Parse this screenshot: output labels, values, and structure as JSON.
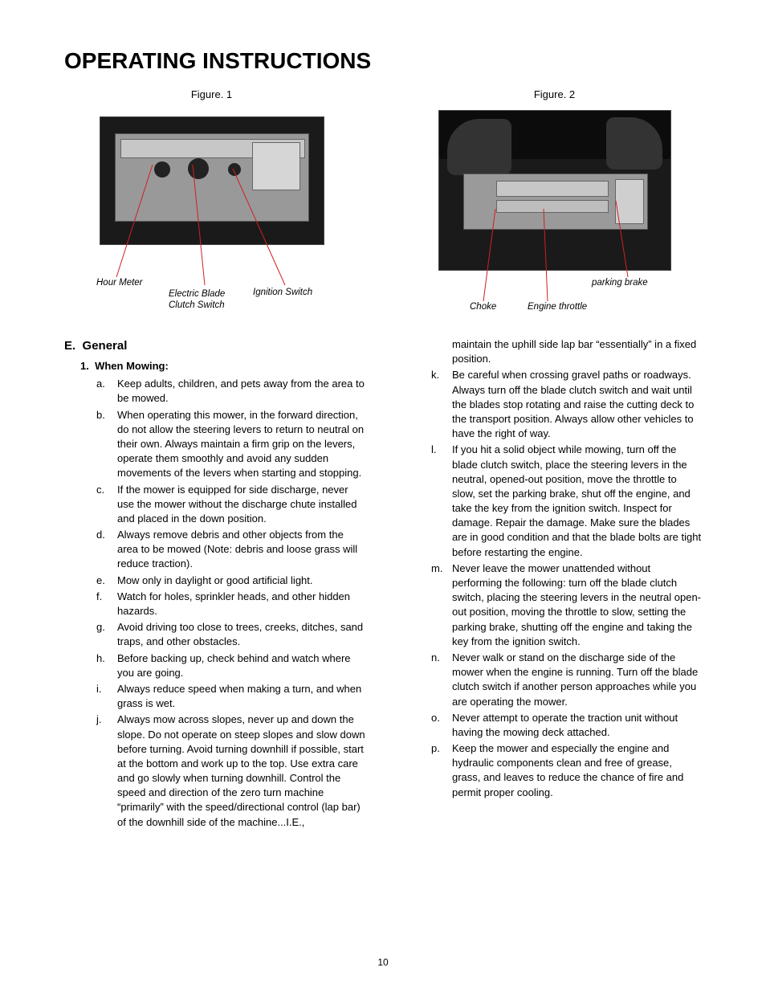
{
  "title": "OPERATING INSTRUCTIONS",
  "figure1": {
    "caption": "Figure. 1",
    "callouts": {
      "hour_meter": "Hour Meter",
      "electric_blade_clutch": "Electric Blade\nClutch Switch",
      "ignition_switch": "Ignition Switch"
    },
    "line_color": "#d02020"
  },
  "figure2": {
    "caption": "Figure. 2",
    "callouts": {
      "choke": "Choke",
      "engine_throttle": "Engine throttle",
      "parking_brake": "parking brake"
    },
    "line_color": "#d02020"
  },
  "section": {
    "letter": "E.",
    "title": "General",
    "sub_number": "1.",
    "sub_title": "When Mowing:"
  },
  "items_left": [
    {
      "m": "a.",
      "t": "Keep adults, children, and pets away from the area to be mowed."
    },
    {
      "m": "b.",
      "t": "When operating this mower, in the forward direction, do not allow the steering levers to return to neutral on their own. Always maintain a firm grip on the levers, operate them smoothly and avoid any sudden movements of the levers when starting and stopping."
    },
    {
      "m": "c.",
      "t": "If the mower is equipped for side discharge, never use the mower without the discharge chute installed and placed in the down position."
    },
    {
      "m": "d.",
      "t": "Always remove debris and other objects from the area to be mowed (Note: debris and loose grass will reduce traction)."
    },
    {
      "m": "e.",
      "t": "Mow only in daylight or good artificial light."
    },
    {
      "m": "f.",
      "t": "Watch for holes, sprinkler heads, and other hidden hazards."
    },
    {
      "m": "g.",
      "t": "Avoid driving too close to trees, creeks, ditches, sand traps, and other obstacles."
    },
    {
      "m": "h.",
      "t": "Before backing up, check behind and watch where you are going."
    },
    {
      "m": "i.",
      "t": "Always reduce speed when making a turn, and when grass is wet."
    },
    {
      "m": "j.",
      "t": "Always mow across slopes, never up and down the slope. Do not operate on steep slopes and slow down before turning. Avoid turning downhill if possible, start at the bottom and work up to the top. Use extra care and go slowly when turning downhill. Control the speed and direction of the zero turn machine “primarily” with the speed/directional control (lap bar) of the downhill side of the machine...I.E.,"
    }
  ],
  "right_lead": "maintain the uphill side lap bar “essentially” in a fixed position.",
  "items_right": [
    {
      "m": "k.",
      "t": "Be careful when crossing gravel paths or roadways. Always turn off the blade clutch switch and wait until the blades stop rotating and raise the cutting deck to the transport position. Always allow other vehicles to have the right of way."
    },
    {
      "m": "l.",
      "t": "If you hit a solid object while mowing, turn off the blade clutch switch, place the steering levers in the neutral, opened-out position, move the throttle to slow, set the parking brake, shut off the engine, and take the key from the ignition switch. Inspect for damage. Repair the damage. Make sure the blades are in good condition and that the blade bolts are tight before restarting the engine."
    },
    {
      "m": "m.",
      "t": "Never leave the mower unattended without performing the following: turn off the blade clutch switch, placing the steering levers in the neutral open-out position, moving the throttle to slow, setting the parking brake, shutting off the engine and taking the key from the ignition switch."
    },
    {
      "m": "n.",
      "t": "Never walk or stand on the discharge side of the mower when the engine is running. Turn off the blade clutch switch if another person approaches while you are operating the mower."
    },
    {
      "m": "o.",
      "t": "Never attempt to operate the traction unit without having the mowing deck attached."
    },
    {
      "m": "p.",
      "t": "Keep the mower and especially the engine and hydraulic components clean and free of grease, grass, and leaves to reduce the chance of fire and permit proper cooling."
    }
  ],
  "page_number": "10"
}
